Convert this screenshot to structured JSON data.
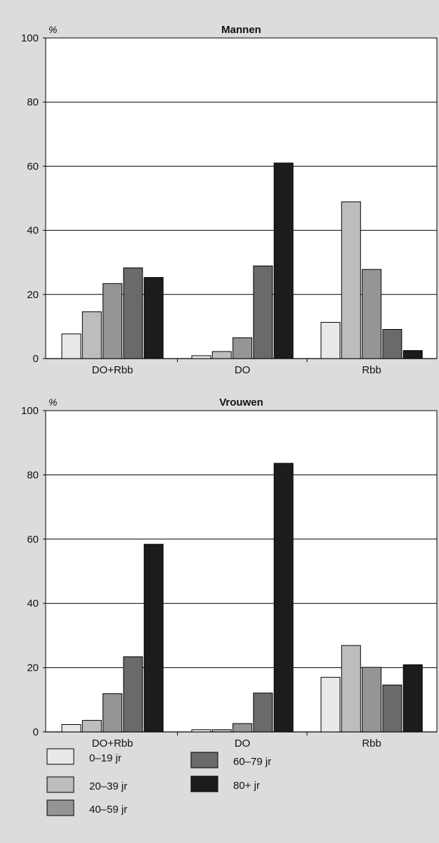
{
  "legend": [
    {
      "label": "0–19 jr",
      "color": "#e9e9e9"
    },
    {
      "label": "20–39 jr",
      "color": "#bdbdbd"
    },
    {
      "label": "40–59 jr",
      "color": "#959595"
    },
    {
      "label": "60–79 jr",
      "color": "#6a6a6a"
    },
    {
      "label": "80+ jr",
      "color": "#1c1c1c"
    }
  ],
  "chart_data": [
    {
      "type": "bar",
      "title": "Mannen",
      "ylabel": "%",
      "ylim": [
        0,
        100
      ],
      "yticks": [
        0,
        20,
        40,
        60,
        80,
        100
      ],
      "grid": true,
      "categories": [
        "DO+Rbb",
        "DO",
        "Rbb"
      ],
      "series": [
        {
          "name": "0–19 jr",
          "values": [
            7.7,
            0.9,
            11.3
          ]
        },
        {
          "name": "20–39 jr",
          "values": [
            14.6,
            2.2,
            48.9
          ]
        },
        {
          "name": "40–59 jr",
          "values": [
            23.4,
            6.5,
            27.8
          ]
        },
        {
          "name": "60–79 jr",
          "values": [
            28.3,
            28.9,
            9.1
          ]
        },
        {
          "name": "80+ jr",
          "values": [
            25.3,
            61.0,
            2.5
          ]
        }
      ]
    },
    {
      "type": "bar",
      "title": "Vrouwen",
      "ylabel": "%",
      "ylim": [
        0,
        100
      ],
      "yticks": [
        0,
        20,
        40,
        60,
        80,
        100
      ],
      "grid": true,
      "categories": [
        "DO+Rbb",
        "DO",
        "Rbb"
      ],
      "series": [
        {
          "name": "0–19 jr",
          "values": [
            2.3,
            0.7,
            17.0
          ]
        },
        {
          "name": "20–39 jr",
          "values": [
            3.6,
            0.7,
            26.9
          ]
        },
        {
          "name": "40–59 jr",
          "values": [
            11.9,
            2.6,
            20.1
          ]
        },
        {
          "name": "60–79 jr",
          "values": [
            23.4,
            12.1,
            14.6
          ]
        },
        {
          "name": "80+ jr",
          "values": [
            58.4,
            83.6,
            20.9
          ]
        }
      ]
    }
  ]
}
